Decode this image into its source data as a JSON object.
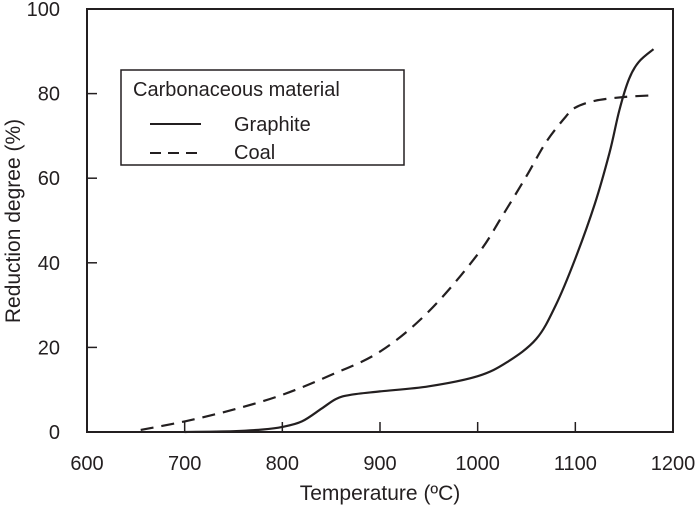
{
  "chart_data": {
    "type": "line",
    "title": "",
    "xlabel": "Temperature (ºC)",
    "ylabel": "Reduction degree (%)",
    "xlim": [
      600,
      1200
    ],
    "ylim": [
      0,
      100
    ],
    "xticks": [
      600,
      700,
      800,
      900,
      1000,
      1100,
      1200
    ],
    "yticks": [
      0,
      20,
      40,
      60,
      80,
      100
    ],
    "xtick_labels": [
      "600",
      "700",
      "800",
      "900",
      "1000",
      "1100",
      "1200"
    ],
    "ytick_labels": [
      "0",
      "20",
      "40",
      "60",
      "80",
      "100"
    ],
    "grid": false,
    "legend": {
      "title": "Carbonaceous material",
      "placement": "top-left"
    },
    "series": [
      {
        "name": "Graphite",
        "style": "solid",
        "x": [
          700,
          750,
          780,
          800,
          820,
          840,
          855,
          870,
          900,
          950,
          1000,
          1030,
          1060,
          1080,
          1100,
          1120,
          1135,
          1145,
          1155,
          1165,
          1180
        ],
        "y": [
          0,
          0.2,
          0.6,
          1.2,
          2.5,
          5.5,
          7.8,
          8.8,
          9.6,
          10.8,
          13.2,
          16.5,
          22.0,
          30.0,
          41.0,
          54.0,
          66.0,
          76.0,
          83.5,
          87.5,
          90.5
        ]
      },
      {
        "name": "Coal",
        "style": "dashed",
        "x": [
          655,
          700,
          750,
          800,
          850,
          900,
          950,
          1000,
          1025,
          1050,
          1070,
          1090,
          1100,
          1120,
          1150,
          1180
        ],
        "y": [
          0.5,
          2.5,
          5.3,
          8.8,
          13.5,
          19.0,
          28.5,
          42.0,
          51.0,
          60.5,
          68.5,
          74.5,
          76.7,
          78.3,
          79.2,
          79.6
        ]
      }
    ]
  }
}
